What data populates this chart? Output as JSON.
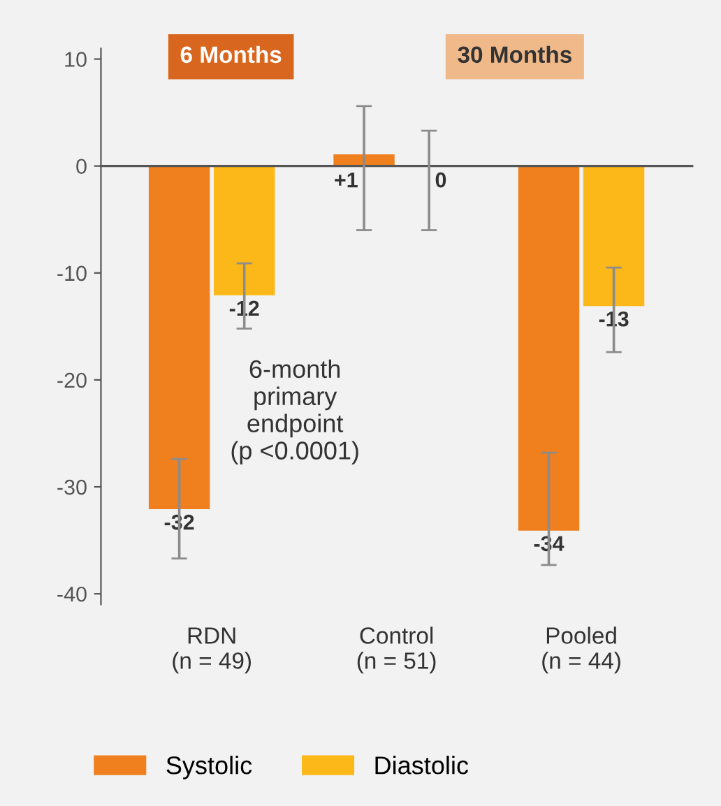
{
  "chart_data": {
    "type": "bar",
    "categories": [
      "RDN\n(n = 49)",
      "Control\n(n = 51)",
      "Pooled\n(n = 44)"
    ],
    "series": [
      {
        "name": "Systolic",
        "color": "#f07f1e",
        "values": [
          -32,
          1,
          -34
        ],
        "value_labels": [
          "-32",
          "+1",
          "-34"
        ],
        "errors": [
          [
            -36.7,
            -27.4
          ],
          [
            -6.0,
            5.6
          ],
          [
            -37.3,
            -26.8
          ]
        ]
      },
      {
        "name": "Diastolic",
        "color": "#fbb818",
        "values": [
          -12,
          0,
          -13
        ],
        "value_labels": [
          "-12",
          "0",
          "-13"
        ],
        "errors": [
          [
            -15.2,
            -9.1
          ],
          [
            -6.0,
            3.3
          ],
          [
            -17.4,
            -9.5
          ]
        ]
      }
    ],
    "ylim": [
      -41,
      11
    ],
    "yticks": [
      -40,
      -30,
      -20,
      -10,
      0,
      10
    ],
    "legend": "bottom left",
    "annotations": [
      "6 Months",
      "30 Months",
      "6-month\nprimary\nendpoint\n(p <0.0001)"
    ]
  }
}
